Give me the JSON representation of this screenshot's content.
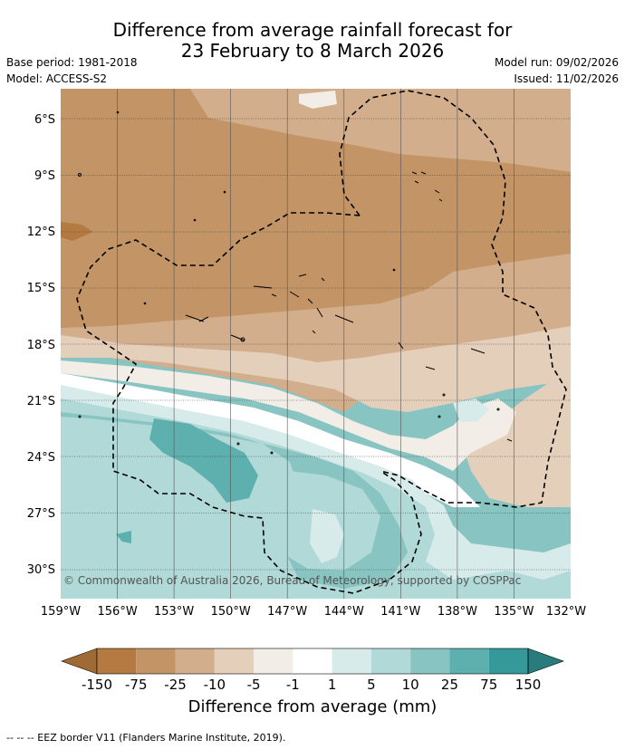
{
  "header": {
    "title_line1": "Difference from average rainfall forecast for",
    "title_line2": "23 February to 8 March 2026",
    "base_period": "Base period: 1981-2018",
    "model": "Model: ACCESS-S2",
    "model_run": "Model run: 09/02/2026",
    "issued": "Issued: 11/02/2026"
  },
  "map": {
    "lat_labels": [
      "6°S",
      "9°S",
      "12°S",
      "15°S",
      "18°S",
      "21°S",
      "24°S",
      "27°S",
      "30°S"
    ],
    "lon_labels": [
      "159°W",
      "156°W",
      "153°W",
      "150°W",
      "147°W",
      "144°W",
      "141°W",
      "138°W",
      "135°W",
      "132°W"
    ],
    "copyright": "© Commonwealth of Australia 2026, Bureau of Meteorology, supported by COSPPac"
  },
  "colorbar": {
    "ticks": [
      "-150",
      "-75",
      "-25",
      "-10",
      "-5",
      "-1",
      "1",
      "5",
      "10",
      "25",
      "75",
      "150"
    ],
    "colors": [
      "#a06a34",
      "#b47a42",
      "#c29466",
      "#d2ae8c",
      "#e4cfbb",
      "#f2ede6",
      "#ffffff",
      "#d6ebea",
      "#b0d9d7",
      "#88c4c2",
      "#5eb0ae",
      "#35999a",
      "#287c7e"
    ],
    "label": "Difference from average (mm)"
  },
  "footnote": "--  --  -- EEZ border V11 (Flanders Marine Institute, 2019)."
}
